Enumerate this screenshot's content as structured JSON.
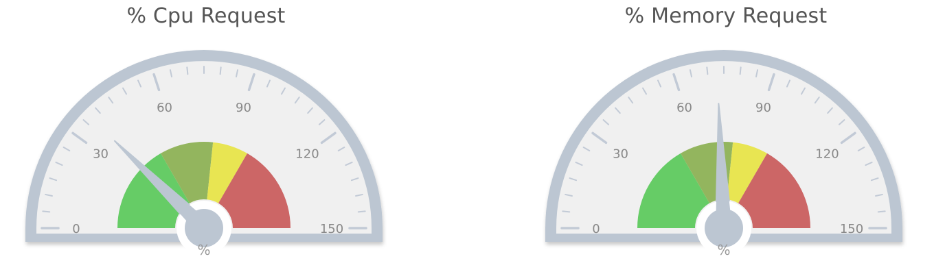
{
  "colors": {
    "frame": "#bcc6d2",
    "face": "#f0f0f0",
    "tick": "#c2cad6",
    "needle": "#bcc6d2",
    "label": "#888888"
  },
  "chart_data": [
    {
      "type": "gauge",
      "title": "% Cpu Request",
      "unit": "%",
      "value": 37,
      "range": [
        0,
        150
      ],
      "major_tick_labels": [
        "0",
        "30",
        "60",
        "90",
        "120",
        "150"
      ],
      "major_ticks": [
        0,
        30,
        60,
        90,
        120,
        150
      ],
      "minor_tick_step": 5,
      "bands": [
        {
          "from": 0,
          "to": 50,
          "color": "#66cc66"
        },
        {
          "from": 50,
          "to": 80,
          "color": "#93b55e"
        },
        {
          "from": 80,
          "to": 100,
          "color": "#e8e552"
        },
        {
          "from": 100,
          "to": 150,
          "color": "#cc6666"
        }
      ]
    },
    {
      "type": "gauge",
      "title": "% Memory Request",
      "unit": "%",
      "value": 73,
      "range": [
        0,
        150
      ],
      "major_tick_labels": [
        "0",
        "30",
        "60",
        "90",
        "120",
        "150"
      ],
      "major_ticks": [
        0,
        30,
        60,
        90,
        120,
        150
      ],
      "minor_tick_step": 5,
      "bands": [
        {
          "from": 0,
          "to": 50,
          "color": "#66cc66"
        },
        {
          "from": 50,
          "to": 80,
          "color": "#93b55e"
        },
        {
          "from": 80,
          "to": 100,
          "color": "#e8e552"
        },
        {
          "from": 100,
          "to": 150,
          "color": "#cc6666"
        }
      ]
    }
  ]
}
